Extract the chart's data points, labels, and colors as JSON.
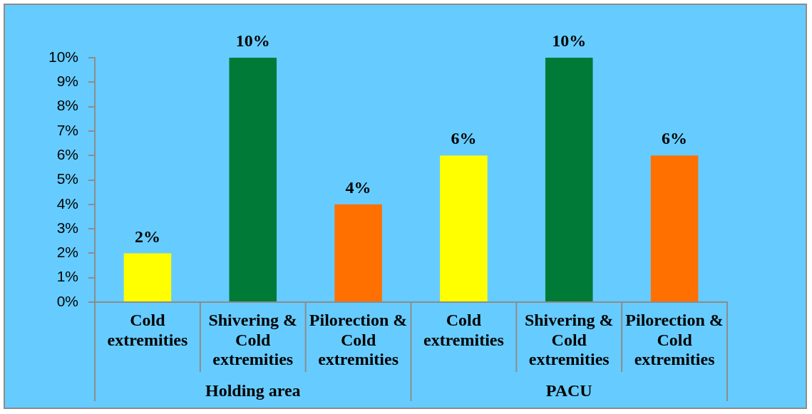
{
  "chart_data": {
    "type": "bar",
    "categories": [
      "Cold extremities",
      "Shivering & Cold extremities",
      "Pilorection & Cold extremities",
      "Cold extremities",
      "Shivering & Cold extremities",
      "Pilorection & Cold extremities"
    ],
    "series": [
      {
        "colors": [
          "#ffff00",
          "#007a37",
          "#ff7000",
          "#ffff00",
          "#007a37",
          "#ff7000"
        ],
        "values": [
          2,
          10,
          4,
          6,
          10,
          6
        ],
        "value_labels": [
          "2%",
          "10%",
          "4%",
          "6%",
          "10%",
          "6%"
        ]
      }
    ],
    "annotations": [
      "Holding area",
      "PACU"
    ],
    "ylim": [
      0,
      10
    ],
    "yticks": [
      {
        "value": 0,
        "label": "0%"
      },
      {
        "value": 1,
        "label": "1%"
      },
      {
        "value": 2,
        "label": "2%"
      },
      {
        "value": 3,
        "label": "3%"
      },
      {
        "value": 4,
        "label": "4%"
      },
      {
        "value": 5,
        "label": "5%"
      },
      {
        "value": 6,
        "label": "6%"
      },
      {
        "value": 7,
        "label": "7%"
      },
      {
        "value": 8,
        "label": "8%"
      },
      {
        "value": 9,
        "label": "9%"
      },
      {
        "value": 10,
        "label": "10%"
      }
    ],
    "grid": false,
    "legend": false
  }
}
